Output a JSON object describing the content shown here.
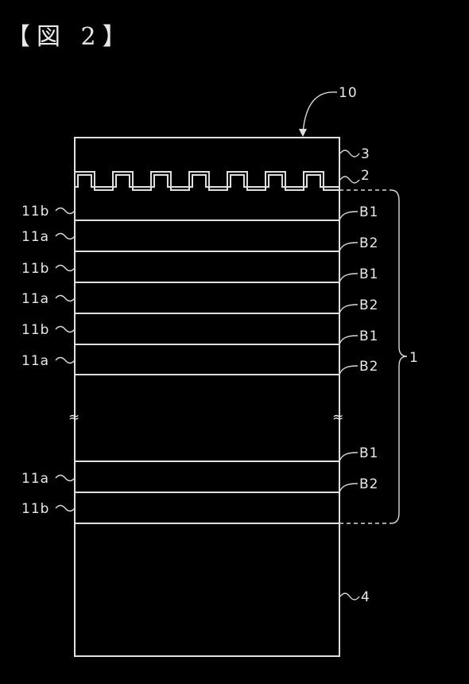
{
  "figure_label": "【図 2】",
  "labels": {
    "device": "10",
    "layer_top": "3",
    "layer_pattern": "2",
    "stack": "1",
    "substrate": "4",
    "break_mark": "≈"
  },
  "left_labels": [
    "11b",
    "11a",
    "11b",
    "11a",
    "11b",
    "11a",
    "11a",
    "11b"
  ],
  "right_labels": [
    "B1",
    "B2",
    "B1",
    "B2",
    "B1",
    "B2",
    "B1",
    "B2"
  ]
}
